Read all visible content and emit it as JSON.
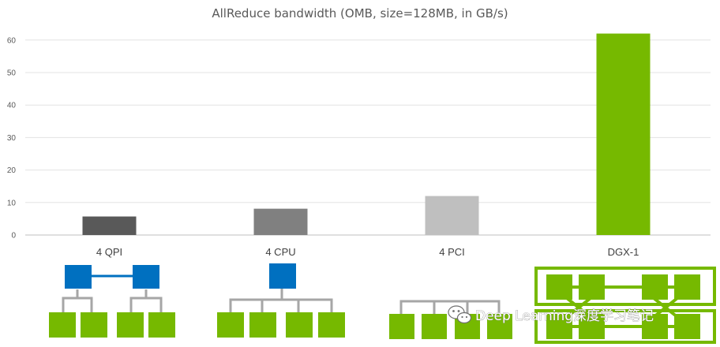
{
  "chart_data": {
    "type": "bar",
    "title": "AllReduce bandwidth (OMB, size=128MB, in GB/s)",
    "xlabel": "",
    "ylabel": "",
    "ylim": [
      0,
      65
    ],
    "yticks": [
      0,
      10,
      20,
      30,
      40,
      50,
      60
    ],
    "categories": [
      "4 QPI",
      "4 CPU",
      "4 PCI",
      "DGX-1"
    ],
    "values": [
      5.7,
      8.1,
      12,
      62
    ],
    "bar_colors": [
      "#595959",
      "#808080",
      "#bfbfbf",
      "#76b900"
    ],
    "grid": "horizontal",
    "legend": "none"
  },
  "topology": {
    "node_color": "#76b900",
    "cpu_color": "#0070c0",
    "link_color": "#a6a6a6",
    "cpu_link_color": "#0070c0"
  },
  "watermark": {
    "text": "Deep Learning深度学习笔记",
    "icon": "wechat-icon"
  }
}
